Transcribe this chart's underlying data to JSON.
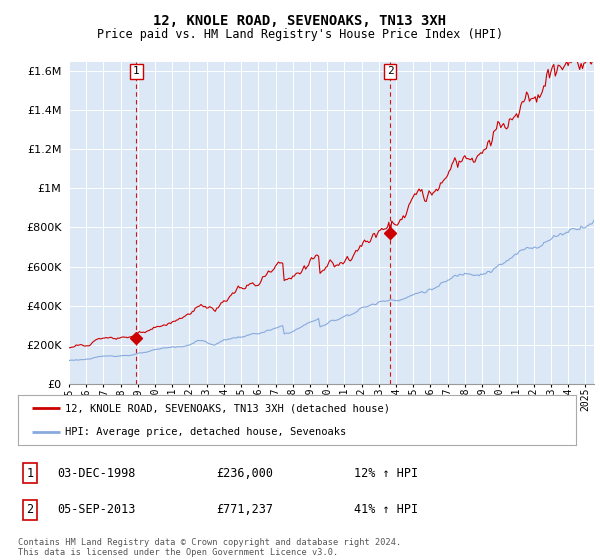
{
  "title": "12, KNOLE ROAD, SEVENOAKS, TN13 3XH",
  "subtitle": "Price paid vs. HM Land Registry's House Price Index (HPI)",
  "legend_line1": "12, KNOLE ROAD, SEVENOAKS, TN13 3XH (detached house)",
  "legend_line2": "HPI: Average price, detached house, Sevenoaks",
  "transaction1_date": "03-DEC-1998",
  "transaction1_price": "£236,000",
  "transaction1_hpi": "12% ↑ HPI",
  "transaction2_date": "05-SEP-2013",
  "transaction2_price": "£771,237",
  "transaction2_hpi": "41% ↑ HPI",
  "footnote": "Contains HM Land Registry data © Crown copyright and database right 2024.\nThis data is licensed under the Open Government Licence v3.0.",
  "price_line_color": "#cc0000",
  "hpi_line_color": "#88aadd",
  "marker_color": "#cc0000",
  "vline_color": "#cc0000",
  "plot_bg_color": "#dce8f5",
  "grid_color": "#ffffff",
  "background_color": "#ffffff",
  "ylim": [
    0,
    1650000
  ],
  "yticks": [
    0,
    200000,
    400000,
    600000,
    800000,
    1000000,
    1200000,
    1400000,
    1600000
  ],
  "t1_year": 1998.917,
  "t2_year": 2013.667,
  "t1_price": 236000,
  "t2_price": 771237
}
